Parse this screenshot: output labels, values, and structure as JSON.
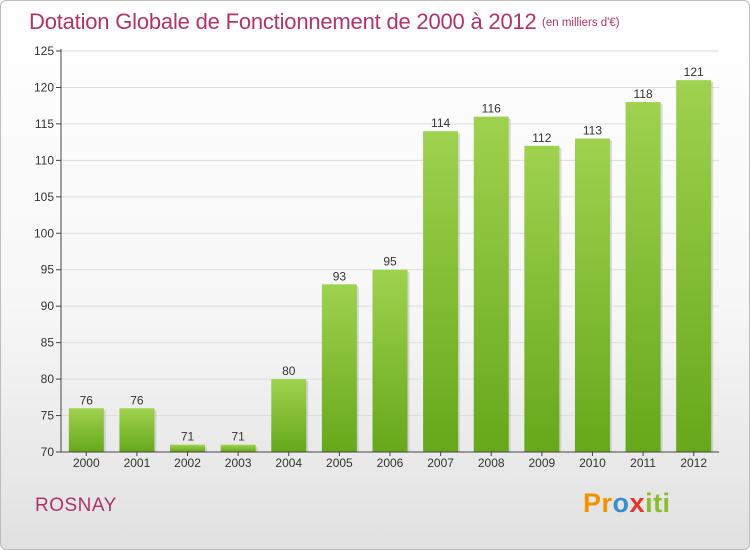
{
  "header": {
    "title": "Dotation Globale de Fonctionnement de 2000 à 2012",
    "unit": "(en milliers d'€)"
  },
  "footer": {
    "city": "ROSNAY",
    "brand_letters": [
      "Pr",
      "o",
      "x",
      "iti"
    ]
  },
  "colors": {
    "bar_top": "#9fd24f",
    "bar_bottom": "#66a81a",
    "title": "#b2336b",
    "grid": "#dddddd"
  },
  "chart_data": {
    "type": "bar",
    "title": "Dotation Globale de Fonctionnement de 2000 à 2012",
    "categories": [
      "2000",
      "2001",
      "2002",
      "2003",
      "2004",
      "2005",
      "2006",
      "2007",
      "2008",
      "2009",
      "2010",
      "2011",
      "2012"
    ],
    "values": [
      76,
      76,
      71,
      71,
      80,
      93,
      95,
      114,
      116,
      112,
      113,
      118,
      121
    ],
    "ylim": [
      70,
      125
    ],
    "yticks": [
      70,
      75,
      80,
      85,
      90,
      95,
      100,
      105,
      110,
      115,
      120,
      125
    ],
    "grid": true,
    "data_labels": true
  }
}
